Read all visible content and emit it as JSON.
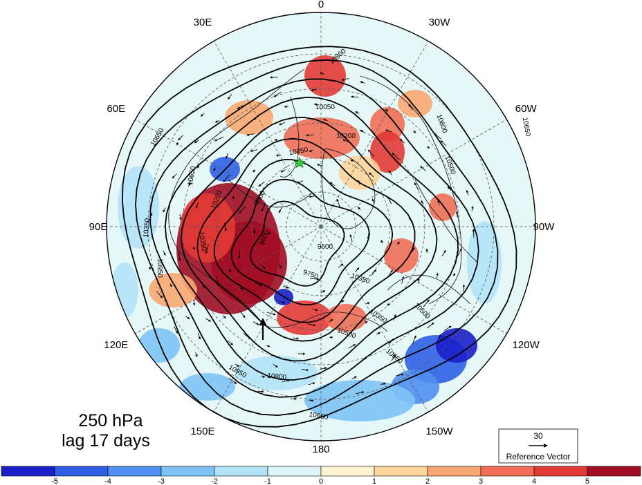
{
  "title_lines": [
    "250 hPa",
    "lag 17 days"
  ],
  "longitude_labels": [
    "0",
    "30W",
    "60W",
    "90W",
    "120W",
    "150W",
    "180",
    "150E",
    "120E",
    "90E",
    "60E",
    "30E"
  ],
  "contour_labels": [
    "10800",
    "10950",
    "10950",
    "10950",
    "10800",
    "10800",
    "10650",
    "10650",
    "10650",
    "10500",
    "10500",
    "10350",
    "10350",
    "10350",
    "10200",
    "10200",
    "10050",
    "9900",
    "9750",
    "9600",
    "9600",
    "10500",
    "10650",
    "10050",
    "10350"
  ],
  "reference_vector": {
    "value": "30",
    "label": "Reference Vector"
  },
  "colorbar": {
    "ticks": [
      "-5",
      "-4",
      "-3",
      "-2",
      "-1",
      "0",
      "1",
      "2",
      "3",
      "4",
      "5"
    ],
    "colors": [
      "#1a1fc8",
      "#2f5fe6",
      "#4f8ff0",
      "#7ec3f5",
      "#b2e3f7",
      "#ddf5f8",
      "#fff3d0",
      "#fdd49a",
      "#f9a870",
      "#f06e55",
      "#e23a36",
      "#a10d23"
    ]
  },
  "marker_color": "#33cc33"
}
